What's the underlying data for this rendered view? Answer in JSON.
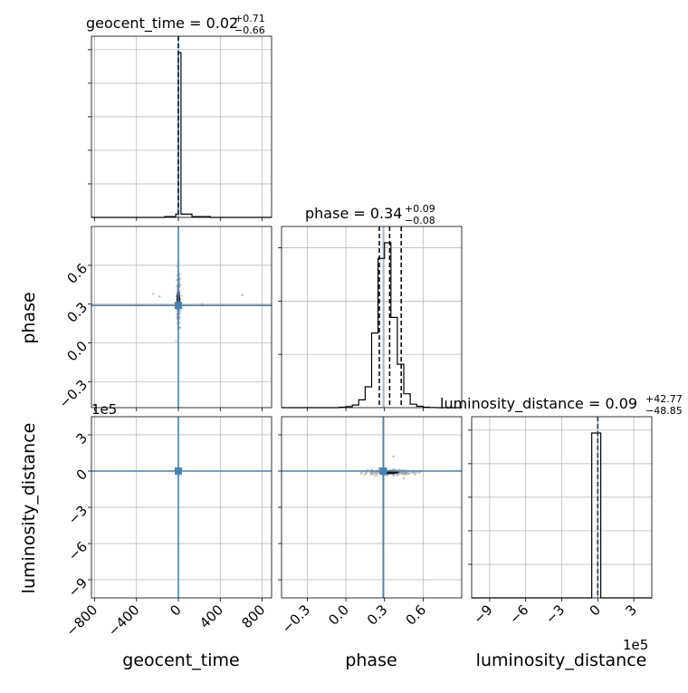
{
  "chart_data": {
    "type": "corner",
    "parameters": [
      "geocent_time",
      "phase",
      "luminosity_distance"
    ],
    "truth": {
      "geocent_time": 0.0,
      "phase": 0.29,
      "luminosity_distance": 0.0
    },
    "colors": {
      "truth": "#4682b4",
      "hist": "#000000",
      "grid": "#b0b0b0",
      "scatter": "#9e9e9e"
    },
    "grid": true,
    "panels": {
      "geocent_time_hist": {
        "title_main": "geocent_time = 0.02",
        "title_sup": "+0.71",
        "title_sub": "−0.66",
        "xlim": [
          -830,
          890
        ],
        "bins": [
          -830,
          -655,
          -480,
          -305,
          -130,
          -25,
          0,
          25,
          130,
          305,
          480,
          655,
          890
        ],
        "counts": [
          0,
          0,
          0,
          0,
          0.005,
          0.02,
          1.0,
          0.02,
          0.005,
          0,
          0,
          0
        ],
        "quantiles": [
          -0.64,
          0.02,
          0.73
        ]
      },
      "phase_hist": {
        "title_main": "phase = 0.34",
        "title_sup": "+0.09",
        "title_sub": "−0.08",
        "xlim": [
          -0.5,
          0.9
        ],
        "bins": [
          -0.5,
          -0.05,
          0.0,
          0.05,
          0.1,
          0.15,
          0.2,
          0.25,
          0.3,
          0.35,
          0.4,
          0.45,
          0.5,
          0.55,
          0.6,
          0.65,
          0.7,
          0.75,
          0.9
        ],
        "counts": [
          0,
          0.003,
          0.006,
          0.015,
          0.045,
          0.12,
          0.43,
          0.86,
          0.95,
          0.52,
          0.25,
          0.08,
          0.02,
          0.008,
          0.003,
          0.001,
          0,
          0
        ],
        "quantiles": [
          0.26,
          0.34,
          0.43
        ]
      },
      "luminosity_distance_hist": {
        "title_main": "luminosity_distance = 0.09",
        "title_sup": "+42.77",
        "title_sub": "−48.85",
        "xlim": [
          -10.5,
          4.5
        ],
        "bins": [
          -10.5,
          -0.5,
          0.25,
          4.5
        ],
        "counts": [
          0,
          1.0,
          0
        ],
        "quantiles": [
          -0.0005,
          9e-07,
          0.0004
        ]
      }
    },
    "axes": {
      "geocent_time": {
        "range": [
          -830,
          890
        ],
        "ticks": [
          -800,
          -400,
          0,
          400,
          800
        ],
        "tick_labels": [
          "−800",
          "−400",
          "0",
          "400",
          "800"
        ],
        "label": "geocent_time"
      },
      "phase": {
        "range": [
          -0.5,
          0.9
        ],
        "ticks": [
          -0.3,
          0.0,
          0.3,
          0.6
        ],
        "tick_labels": [
          "−0.3",
          "0.0",
          "0.3",
          "0.6"
        ],
        "label": "phase"
      },
      "luminosity_distance": {
        "range": [
          -10.5,
          4.5
        ],
        "ticks": [
          -9,
          -6,
          -3,
          0,
          3
        ],
        "tick_labels": [
          "−9",
          "−6",
          "−3",
          "0",
          "3"
        ],
        "label": "luminosity_distance",
        "offset_text": "1e5"
      }
    },
    "scatter_samples": {
      "geocent_time_vs_phase": {
        "center": [
          0,
          0.33
        ],
        "spread": [
          8,
          0.09
        ],
        "outliers": [
          [
            -240,
            0.38
          ],
          [
            610,
            0.37
          ],
          [
            230,
            0.3
          ],
          [
            -180,
            0.36
          ]
        ]
      },
      "geocent_time_vs_luminosity_distance": {
        "center": [
          0,
          0
        ],
        "spread": [
          5,
          0.08
        ]
      },
      "phase_vs_luminosity_distance": {
        "center": [
          0.34,
          -0.1
        ],
        "spread": [
          0.09,
          0.12
        ],
        "tail": [
          [
            0.37,
            1.2
          ],
          [
            0.45,
            -0.6
          ]
        ]
      }
    }
  }
}
